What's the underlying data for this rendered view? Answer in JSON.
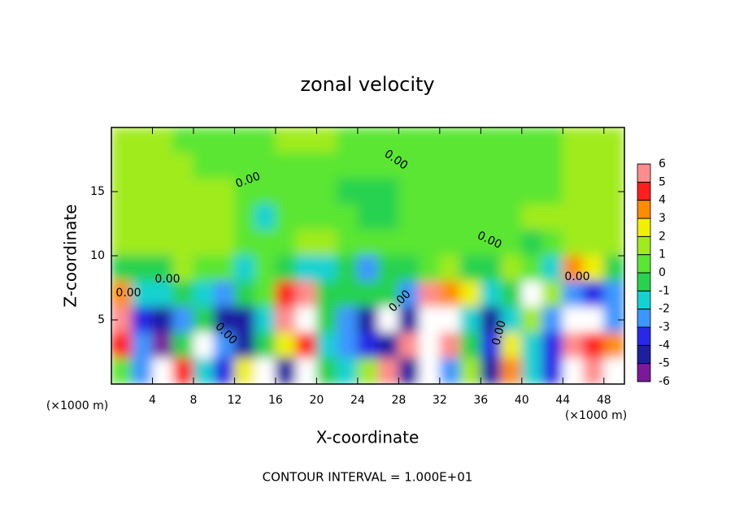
{
  "chart_data": {
    "type": "heatmap",
    "title": "zonal velocity",
    "x_label": "X-coordinate",
    "y_label": "Z-coordinate",
    "x_unit": "(×1000 m)",
    "y_unit": "(×1000 m)",
    "note": "CONTOUR INTERVAL = 1.000E+01",
    "xlim": [
      0,
      50
    ],
    "ylim": [
      0,
      20
    ],
    "xticks": [
      4,
      8,
      12,
      16,
      20,
      24,
      28,
      32,
      36,
      40,
      44,
      48
    ],
    "yticks": [
      5,
      10,
      15
    ],
    "contour_labels": [
      "0.00",
      "0.00",
      "0.00",
      "0.00",
      "0.00",
      "0.00",
      "0.00",
      "0.00",
      "0.00"
    ],
    "field": {
      "x": [
        1,
        3,
        5,
        7,
        9,
        11,
        13,
        15,
        17,
        19,
        21,
        23,
        25,
        27,
        29,
        31,
        33,
        35,
        37,
        39,
        41,
        43,
        45,
        47,
        49
      ],
      "z": [
        19,
        17,
        15,
        13,
        11,
        9,
        7,
        5,
        3,
        1
      ],
      "values": [
        [
          1,
          1,
          1,
          0.5,
          0.5,
          0.5,
          0.5,
          0.5,
          1,
          1,
          1,
          0.5,
          0.5,
          0.5,
          0.5,
          0.5,
          0.5,
          0.5,
          0.5,
          0.5,
          0.5,
          0.5,
          1,
          1,
          1
        ],
        [
          1,
          1,
          1,
          1,
          0.5,
          0.5,
          0.5,
          0.5,
          0.5,
          0.5,
          0.5,
          0.5,
          0.5,
          0.5,
          0.5,
          0.5,
          0.5,
          0.5,
          0.5,
          0.5,
          0.5,
          0.5,
          1,
          1,
          1
        ],
        [
          1,
          1,
          1,
          1,
          1,
          1,
          0.5,
          0.5,
          0.5,
          0.5,
          0.5,
          -0.5,
          -0.5,
          -0.5,
          0.5,
          0.5,
          0.5,
          0.5,
          0.5,
          0.5,
          0.5,
          0.5,
          1,
          1,
          1
        ],
        [
          1,
          1,
          1,
          1,
          1,
          1,
          0.5,
          -1.5,
          0.5,
          0.5,
          0.5,
          0.5,
          -0.5,
          -0.5,
          0.5,
          0.5,
          0.5,
          0.5,
          0.5,
          0.5,
          1,
          1,
          1,
          1,
          1
        ],
        [
          1,
          1,
          1,
          1,
          1,
          1,
          0.5,
          0.5,
          0.5,
          1.5,
          1,
          0.5,
          0.5,
          0.5,
          0.5,
          0.5,
          0.5,
          0.5,
          0.5,
          0.5,
          -0.5,
          0.5,
          1,
          1,
          1
        ],
        [
          -1,
          -0.5,
          -0.5,
          1.5,
          0.5,
          0.5,
          -1.5,
          0.5,
          -1,
          -1.5,
          -1.5,
          -1,
          -2.5,
          -0.5,
          -0.5,
          0.5,
          1,
          -1,
          -0.5,
          1,
          0.5,
          -2,
          3,
          2,
          -0.5
        ],
        [
          3,
          -2,
          -2,
          -1,
          -2,
          -3,
          -1,
          0.5,
          4,
          5,
          -0.5,
          -1,
          -1,
          -0.5,
          -3,
          5,
          3,
          2,
          -2,
          -1,
          6,
          1,
          -3,
          -4,
          -3
        ],
        [
          5,
          -4,
          -5,
          -3,
          -1,
          -5,
          -5,
          -2,
          5,
          6,
          -1,
          -3,
          -5,
          6,
          -5,
          6,
          6,
          -2,
          -5,
          -2,
          1,
          -3,
          6,
          6,
          -3
        ],
        [
          4,
          -3,
          -6,
          -1,
          6,
          -3,
          -5,
          -1,
          2,
          4,
          -2,
          -3,
          -4,
          -5,
          5,
          6,
          5,
          -1,
          -4,
          2,
          -2,
          -4,
          5,
          4,
          3
        ],
        [
          0.5,
          -3,
          6,
          4,
          -2,
          -4,
          2,
          6,
          -5,
          6,
          -1,
          -2,
          1,
          5,
          -5,
          6,
          -3,
          1,
          -5,
          3,
          -2,
          -4,
          6,
          5,
          6
        ]
      ]
    },
    "colorbar": {
      "clim": [
        -6,
        6
      ],
      "ticks": [
        6,
        5,
        4,
        3,
        2,
        1,
        0,
        -1,
        -2,
        -3,
        -4,
        -5,
        -6
      ],
      "colors": [
        "#7a1a9a",
        "#1e1ea0",
        "#2828e6",
        "#3c96ff",
        "#14d2d2",
        "#28d250",
        "#5ae632",
        "#a0eb1e",
        "#f0f000",
        "#ff8c00",
        "#ff1e1e",
        "#ff8c8c"
      ],
      "over_color": "#ffffff"
    }
  }
}
